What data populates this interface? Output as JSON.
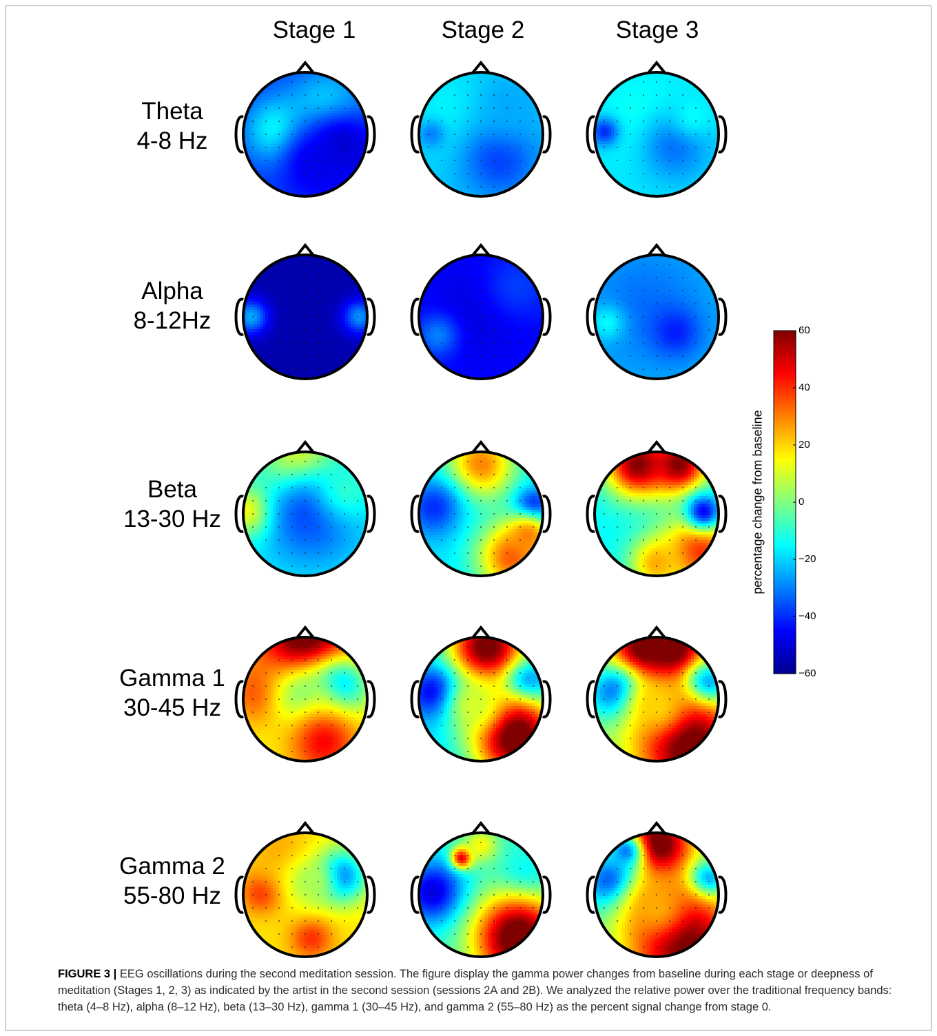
{
  "figure": {
    "column_headers": [
      "Stage 1",
      "Stage 2",
      "Stage 3"
    ],
    "rows": [
      {
        "name": "Theta",
        "range": "4-8 Hz"
      },
      {
        "name": "Alpha",
        "range": "8-12Hz"
      },
      {
        "name": "Beta",
        "range": "13-30 Hz"
      },
      {
        "name": "Gamma 1",
        "range": "30-45 Hz"
      },
      {
        "name": "Gamma 2",
        "range": "55-80 Hz"
      }
    ],
    "colorbar": {
      "label": "percentage change from baseline",
      "ticks": [
        "60",
        "40",
        "20",
        "0",
        "−20",
        "−40",
        "−60"
      ],
      "range": [
        -60,
        60
      ],
      "colormap": [
        "#00008f",
        "#0000ff",
        "#0080ff",
        "#00ffff",
        "#80ff80",
        "#ffff00",
        "#ff8000",
        "#ff0000",
        "#800000"
      ]
    }
  },
  "maps": [
    [
      {
        "base": -38,
        "blobs": [
          [
            0.28,
            0.47,
            0.18,
            -12
          ],
          [
            0.7,
            0.33,
            0.22,
            -8
          ],
          [
            0.8,
            0.6,
            0.25,
            -52
          ],
          [
            0.58,
            0.75,
            0.18,
            -48
          ]
        ]
      },
      {
        "base": -22,
        "blobs": [
          [
            0.3,
            0.35,
            0.3,
            -15
          ],
          [
            0.65,
            0.7,
            0.22,
            -38
          ],
          [
            0.72,
            0.25,
            0.2,
            -25
          ],
          [
            0.1,
            0.5,
            0.08,
            -30
          ]
        ]
      },
      {
        "base": -18,
        "blobs": [
          [
            0.4,
            0.4,
            0.25,
            -12
          ],
          [
            0.65,
            0.6,
            0.2,
            -32
          ],
          [
            0.08,
            0.48,
            0.08,
            -40
          ],
          [
            0.8,
            0.35,
            0.12,
            -15
          ]
        ]
      }
    ],
    [
      {
        "base": -56,
        "blobs": [
          [
            0.06,
            0.5,
            0.1,
            -25
          ],
          [
            0.94,
            0.5,
            0.1,
            -28
          ]
        ]
      },
      {
        "base": -44,
        "blobs": [
          [
            0.5,
            0.45,
            0.3,
            -50
          ],
          [
            0.15,
            0.65,
            0.12,
            -30
          ],
          [
            0.8,
            0.25,
            0.2,
            -38
          ]
        ]
      },
      {
        "base": -25,
        "blobs": [
          [
            0.4,
            0.4,
            0.3,
            -32
          ],
          [
            0.65,
            0.62,
            0.14,
            -42
          ],
          [
            0.1,
            0.55,
            0.1,
            -15
          ]
        ]
      }
    ],
    [
      {
        "base": -15,
        "blobs": [
          [
            0.48,
            0.12,
            0.22,
            30
          ],
          [
            0.08,
            0.48,
            0.14,
            30
          ],
          [
            0.55,
            0.5,
            0.3,
            -38
          ],
          [
            0.85,
            0.3,
            0.18,
            -10
          ]
        ]
      },
      {
        "base": -18,
        "blobs": [
          [
            0.5,
            0.1,
            0.2,
            30
          ],
          [
            0.12,
            0.45,
            0.16,
            -40
          ],
          [
            0.92,
            0.45,
            0.1,
            -50
          ],
          [
            0.75,
            0.85,
            0.2,
            35
          ],
          [
            0.88,
            0.68,
            0.12,
            30
          ]
        ]
      },
      {
        "base": -15,
        "blobs": [
          [
            0.35,
            0.1,
            0.18,
            60
          ],
          [
            0.68,
            0.1,
            0.16,
            60
          ],
          [
            0.85,
            0.8,
            0.22,
            40
          ],
          [
            0.5,
            0.9,
            0.15,
            25
          ],
          [
            0.88,
            0.48,
            0.1,
            -45
          ]
        ]
      }
    ],
    [
      {
        "base": 15,
        "blobs": [
          [
            0.5,
            0.05,
            0.25,
            70
          ],
          [
            0.15,
            0.45,
            0.18,
            40
          ],
          [
            0.78,
            0.4,
            0.16,
            -25
          ],
          [
            0.5,
            0.5,
            0.2,
            -2
          ],
          [
            0.65,
            0.85,
            0.2,
            45
          ]
        ]
      },
      {
        "base": -20,
        "blobs": [
          [
            0.55,
            0.08,
            0.22,
            65
          ],
          [
            0.12,
            0.45,
            0.14,
            -48
          ],
          [
            0.88,
            0.4,
            0.12,
            -48
          ],
          [
            0.78,
            0.8,
            0.25,
            70
          ],
          [
            0.45,
            0.55,
            0.15,
            10
          ]
        ]
      },
      {
        "base": 0,
        "blobs": [
          [
            0.4,
            0.12,
            0.18,
            70
          ],
          [
            0.62,
            0.1,
            0.18,
            70
          ],
          [
            0.18,
            0.45,
            0.15,
            -40
          ],
          [
            0.9,
            0.4,
            0.12,
            -50
          ],
          [
            0.75,
            0.85,
            0.28,
            70
          ],
          [
            0.5,
            0.55,
            0.18,
            20
          ]
        ]
      }
    ],
    [
      {
        "base": 18,
        "blobs": [
          [
            0.15,
            0.48,
            0.12,
            40
          ],
          [
            0.78,
            0.35,
            0.15,
            -35
          ],
          [
            0.3,
            0.15,
            0.18,
            25
          ],
          [
            0.55,
            0.85,
            0.12,
            40
          ],
          [
            0.55,
            0.4,
            0.15,
            5
          ]
        ]
      },
      {
        "base": -10,
        "blobs": [
          [
            0.12,
            0.48,
            0.18,
            -50
          ],
          [
            0.85,
            0.4,
            0.14,
            -25
          ],
          [
            0.8,
            0.85,
            0.25,
            70
          ],
          [
            0.35,
            0.2,
            0.06,
            55
          ],
          [
            0.5,
            0.1,
            0.1,
            15
          ]
        ]
      },
      {
        "base": -5,
        "blobs": [
          [
            0.5,
            0.1,
            0.2,
            70
          ],
          [
            0.15,
            0.4,
            0.15,
            -45
          ],
          [
            0.9,
            0.4,
            0.1,
            -55
          ],
          [
            0.7,
            0.85,
            0.3,
            70
          ],
          [
            0.5,
            0.6,
            0.2,
            25
          ],
          [
            0.25,
            0.15,
            0.1,
            -30
          ]
        ]
      }
    ]
  ],
  "caption": {
    "label": "FIGURE 3 |",
    "text": "EEG oscillations during the second meditation session. The figure display the gamma power changes from baseline during each stage or deepness of meditation (Stages 1, 2, 3) as indicated by the artist in the second session (sessions 2A and 2B). We analyzed the relative power over the traditional frequency bands: theta (4–8 Hz), alpha (8–12 Hz), beta (13–30 Hz), gamma 1 (30–45 Hz), and gamma 2 (55–80 Hz) as the percent signal change from stage 0."
  }
}
